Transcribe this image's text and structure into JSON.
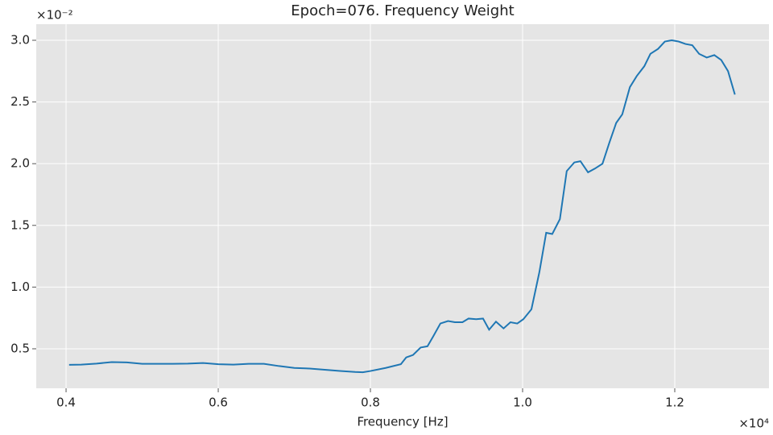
{
  "chart_data": {
    "type": "line",
    "title": "Epoch=076. Frequency Weight",
    "xlabel": "Frequency [Hz]",
    "x_offset_label": "×10⁴",
    "y_offset_label": "×10⁻²",
    "x": [
      0.404,
      0.42,
      0.44,
      0.46,
      0.48,
      0.5,
      0.52,
      0.54,
      0.56,
      0.58,
      0.6,
      0.62,
      0.64,
      0.66,
      0.68,
      0.7,
      0.72,
      0.74,
      0.76,
      0.78,
      0.79,
      0.8,
      0.82,
      0.84,
      0.847,
      0.856,
      0.866,
      0.875,
      0.8825,
      0.892,
      0.902,
      0.911,
      0.921,
      0.929,
      0.939,
      0.948,
      0.956,
      0.965,
      0.975,
      0.984,
      0.993,
      1.001,
      1.0116,
      1.022,
      1.031,
      1.039,
      1.049,
      1.058,
      1.068,
      1.076,
      1.086,
      1.095,
      1.105,
      1.114,
      1.123,
      1.131,
      1.141,
      1.15,
      1.16,
      1.168,
      1.178,
      1.187,
      1.196,
      1.205,
      1.214,
      1.223,
      1.232,
      1.242,
      1.252,
      1.261,
      1.27,
      1.279
    ],
    "series": [
      {
        "color": "#1f77b4",
        "values": [
          0.37,
          0.372,
          0.38,
          0.392,
          0.39,
          0.378,
          0.378,
          0.378,
          0.38,
          0.385,
          0.375,
          0.372,
          0.378,
          0.378,
          0.36,
          0.345,
          0.34,
          0.33,
          0.32,
          0.312,
          0.31,
          0.32,
          0.345,
          0.375,
          0.43,
          0.45,
          0.51,
          0.52,
          0.6,
          0.705,
          0.725,
          0.715,
          0.715,
          0.745,
          0.74,
          0.745,
          0.655,
          0.72,
          0.665,
          0.715,
          0.705,
          0.74,
          0.82,
          1.12,
          1.44,
          1.43,
          1.55,
          1.94,
          2.01,
          2.02,
          1.93,
          1.96,
          2.0,
          2.17,
          2.33,
          2.4,
          2.62,
          2.71,
          2.79,
          2.89,
          2.93,
          2.99,
          3.0,
          2.99,
          2.97,
          2.96,
          2.89,
          2.86,
          2.88,
          2.84,
          2.75,
          2.56
        ]
      }
    ],
    "xlim": [
      0.3608,
      1.3238
    ],
    "ylim": [
      0.18,
      3.1305
    ],
    "xticks": [
      0.4,
      0.6,
      0.8,
      {
        "value": 1,
        "label": "1.0"
      },
      1.2
    ],
    "yticks": [
      0.5,
      {
        "value": 1,
        "label": "1.0"
      },
      1.5,
      {
        "value": 2,
        "label": "2.0"
      },
      2.5,
      {
        "value": 3,
        "label": "3.0"
      }
    ],
    "grid": true,
    "background": "#e5e5e5"
  }
}
